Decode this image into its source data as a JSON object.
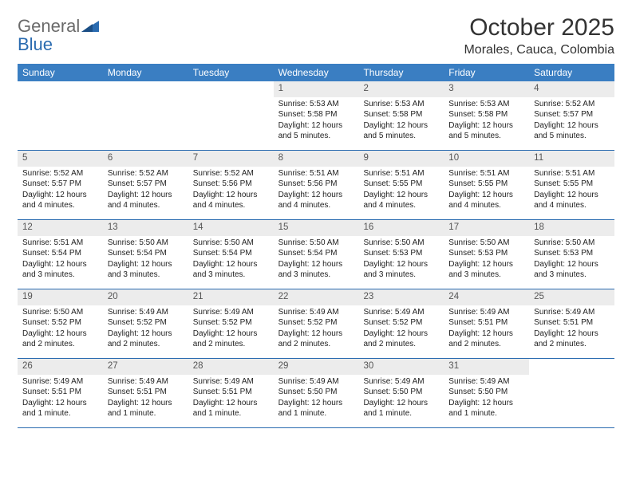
{
  "logo": {
    "general": "General",
    "blue": "Blue"
  },
  "title": "October 2025",
  "location": "Morales, Cauca, Colombia",
  "colors": {
    "header_bg": "#3a7ec2",
    "header_text": "#ffffff",
    "rule": "#2a6bb0",
    "daynum_bg": "#ececec",
    "logo_gray": "#6a6a6a",
    "logo_blue": "#2a6bb0",
    "text": "#222222"
  },
  "weekdays": [
    "Sunday",
    "Monday",
    "Tuesday",
    "Wednesday",
    "Thursday",
    "Friday",
    "Saturday"
  ],
  "weeks": [
    [
      {
        "n": "",
        "sr": "",
        "ss": "",
        "dl": ""
      },
      {
        "n": "",
        "sr": "",
        "ss": "",
        "dl": ""
      },
      {
        "n": "",
        "sr": "",
        "ss": "",
        "dl": ""
      },
      {
        "n": "1",
        "sr": "Sunrise: 5:53 AM",
        "ss": "Sunset: 5:58 PM",
        "dl": "Daylight: 12 hours and 5 minutes."
      },
      {
        "n": "2",
        "sr": "Sunrise: 5:53 AM",
        "ss": "Sunset: 5:58 PM",
        "dl": "Daylight: 12 hours and 5 minutes."
      },
      {
        "n": "3",
        "sr": "Sunrise: 5:53 AM",
        "ss": "Sunset: 5:58 PM",
        "dl": "Daylight: 12 hours and 5 minutes."
      },
      {
        "n": "4",
        "sr": "Sunrise: 5:52 AM",
        "ss": "Sunset: 5:57 PM",
        "dl": "Daylight: 12 hours and 5 minutes."
      }
    ],
    [
      {
        "n": "5",
        "sr": "Sunrise: 5:52 AM",
        "ss": "Sunset: 5:57 PM",
        "dl": "Daylight: 12 hours and 4 minutes."
      },
      {
        "n": "6",
        "sr": "Sunrise: 5:52 AM",
        "ss": "Sunset: 5:57 PM",
        "dl": "Daylight: 12 hours and 4 minutes."
      },
      {
        "n": "7",
        "sr": "Sunrise: 5:52 AM",
        "ss": "Sunset: 5:56 PM",
        "dl": "Daylight: 12 hours and 4 minutes."
      },
      {
        "n": "8",
        "sr": "Sunrise: 5:51 AM",
        "ss": "Sunset: 5:56 PM",
        "dl": "Daylight: 12 hours and 4 minutes."
      },
      {
        "n": "9",
        "sr": "Sunrise: 5:51 AM",
        "ss": "Sunset: 5:55 PM",
        "dl": "Daylight: 12 hours and 4 minutes."
      },
      {
        "n": "10",
        "sr": "Sunrise: 5:51 AM",
        "ss": "Sunset: 5:55 PM",
        "dl": "Daylight: 12 hours and 4 minutes."
      },
      {
        "n": "11",
        "sr": "Sunrise: 5:51 AM",
        "ss": "Sunset: 5:55 PM",
        "dl": "Daylight: 12 hours and 4 minutes."
      }
    ],
    [
      {
        "n": "12",
        "sr": "Sunrise: 5:51 AM",
        "ss": "Sunset: 5:54 PM",
        "dl": "Daylight: 12 hours and 3 minutes."
      },
      {
        "n": "13",
        "sr": "Sunrise: 5:50 AM",
        "ss": "Sunset: 5:54 PM",
        "dl": "Daylight: 12 hours and 3 minutes."
      },
      {
        "n": "14",
        "sr": "Sunrise: 5:50 AM",
        "ss": "Sunset: 5:54 PM",
        "dl": "Daylight: 12 hours and 3 minutes."
      },
      {
        "n": "15",
        "sr": "Sunrise: 5:50 AM",
        "ss": "Sunset: 5:54 PM",
        "dl": "Daylight: 12 hours and 3 minutes."
      },
      {
        "n": "16",
        "sr": "Sunrise: 5:50 AM",
        "ss": "Sunset: 5:53 PM",
        "dl": "Daylight: 12 hours and 3 minutes."
      },
      {
        "n": "17",
        "sr": "Sunrise: 5:50 AM",
        "ss": "Sunset: 5:53 PM",
        "dl": "Daylight: 12 hours and 3 minutes."
      },
      {
        "n": "18",
        "sr": "Sunrise: 5:50 AM",
        "ss": "Sunset: 5:53 PM",
        "dl": "Daylight: 12 hours and 3 minutes."
      }
    ],
    [
      {
        "n": "19",
        "sr": "Sunrise: 5:50 AM",
        "ss": "Sunset: 5:52 PM",
        "dl": "Daylight: 12 hours and 2 minutes."
      },
      {
        "n": "20",
        "sr": "Sunrise: 5:49 AM",
        "ss": "Sunset: 5:52 PM",
        "dl": "Daylight: 12 hours and 2 minutes."
      },
      {
        "n": "21",
        "sr": "Sunrise: 5:49 AM",
        "ss": "Sunset: 5:52 PM",
        "dl": "Daylight: 12 hours and 2 minutes."
      },
      {
        "n": "22",
        "sr": "Sunrise: 5:49 AM",
        "ss": "Sunset: 5:52 PM",
        "dl": "Daylight: 12 hours and 2 minutes."
      },
      {
        "n": "23",
        "sr": "Sunrise: 5:49 AM",
        "ss": "Sunset: 5:52 PM",
        "dl": "Daylight: 12 hours and 2 minutes."
      },
      {
        "n": "24",
        "sr": "Sunrise: 5:49 AM",
        "ss": "Sunset: 5:51 PM",
        "dl": "Daylight: 12 hours and 2 minutes."
      },
      {
        "n": "25",
        "sr": "Sunrise: 5:49 AM",
        "ss": "Sunset: 5:51 PM",
        "dl": "Daylight: 12 hours and 2 minutes."
      }
    ],
    [
      {
        "n": "26",
        "sr": "Sunrise: 5:49 AM",
        "ss": "Sunset: 5:51 PM",
        "dl": "Daylight: 12 hours and 1 minute."
      },
      {
        "n": "27",
        "sr": "Sunrise: 5:49 AM",
        "ss": "Sunset: 5:51 PM",
        "dl": "Daylight: 12 hours and 1 minute."
      },
      {
        "n": "28",
        "sr": "Sunrise: 5:49 AM",
        "ss": "Sunset: 5:51 PM",
        "dl": "Daylight: 12 hours and 1 minute."
      },
      {
        "n": "29",
        "sr": "Sunrise: 5:49 AM",
        "ss": "Sunset: 5:50 PM",
        "dl": "Daylight: 12 hours and 1 minute."
      },
      {
        "n": "30",
        "sr": "Sunrise: 5:49 AM",
        "ss": "Sunset: 5:50 PM",
        "dl": "Daylight: 12 hours and 1 minute."
      },
      {
        "n": "31",
        "sr": "Sunrise: 5:49 AM",
        "ss": "Sunset: 5:50 PM",
        "dl": "Daylight: 12 hours and 1 minute."
      },
      {
        "n": "",
        "sr": "",
        "ss": "",
        "dl": ""
      }
    ]
  ]
}
